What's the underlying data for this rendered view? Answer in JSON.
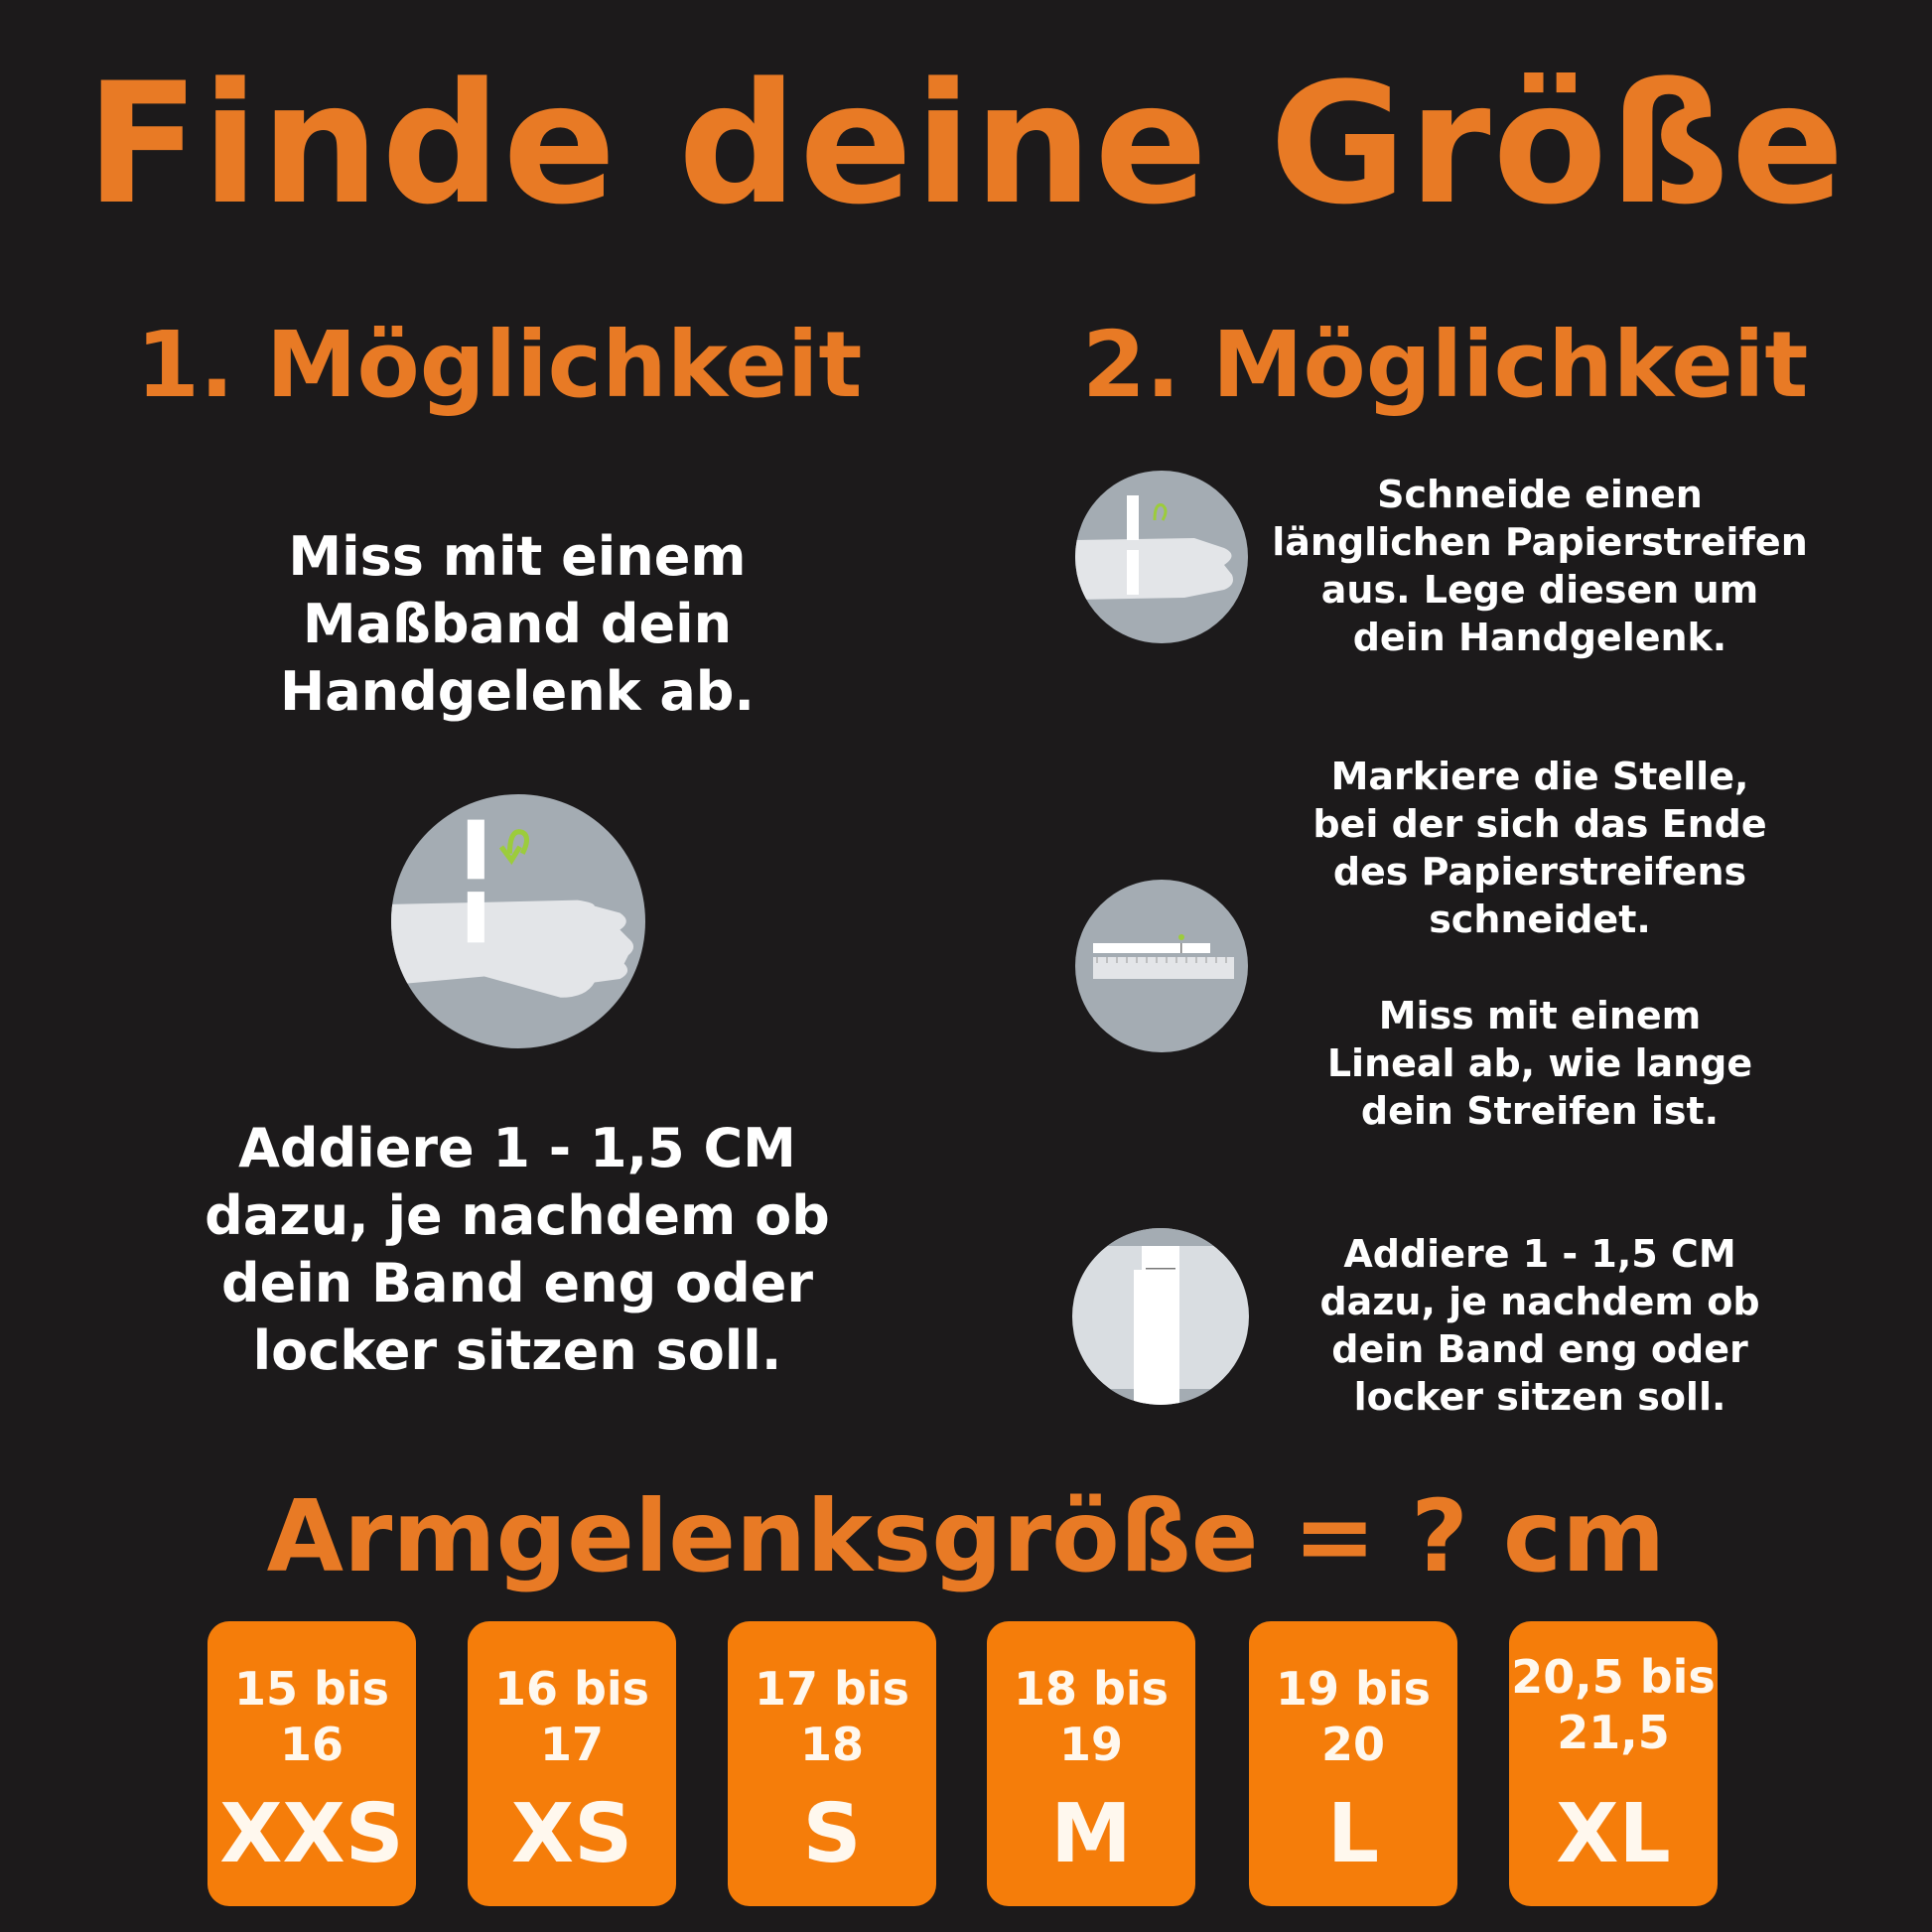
{
  "title": "Finde deine Größe",
  "option1": {
    "heading": "1. Möglichkeit",
    "step1": "Miss mit einem\nMaßband dein\nHandgelenk ab.",
    "step2": "Addiere 1 - 1,5 CM\ndazu, je nachdem ob\ndein Band eng oder\nlocker sitzen soll."
  },
  "option2": {
    "heading": "2. Möglichkeit",
    "step1": "Schneide einen\nlänglichen Papierstreifen\naus. Lege diesen um\ndein Handgelenk.",
    "step2": "Markiere die Stelle,\nbei der sich das Ende\ndes Papierstreifens\nschneidet.",
    "step3": "Miss mit einem\nLineal ab, wie lange\ndein Streifen ist.",
    "step4": "Addiere 1 - 1,5 CM\ndazu, je nachdem ob\ndein Band eng oder\nlocker sitzen soll."
  },
  "formula": "Armgelenksgröße = ? cm",
  "sizes": [
    {
      "range": "15 bis\n16",
      "size": "XXS"
    },
    {
      "range": "16 bis\n17",
      "size": "XS"
    },
    {
      "range": "17 bis\n18",
      "size": "S"
    },
    {
      "range": "18 bis\n19",
      "size": "M"
    },
    {
      "range": "19 bis\n20",
      "size": "L"
    },
    {
      "range": "20,5 bis\n21,5",
      "size": "XL"
    }
  ],
  "colors": {
    "background": "#1c1a1b",
    "accent": "#e87a25",
    "box": "#f57d0a",
    "arrow": "#9ccc3c"
  }
}
